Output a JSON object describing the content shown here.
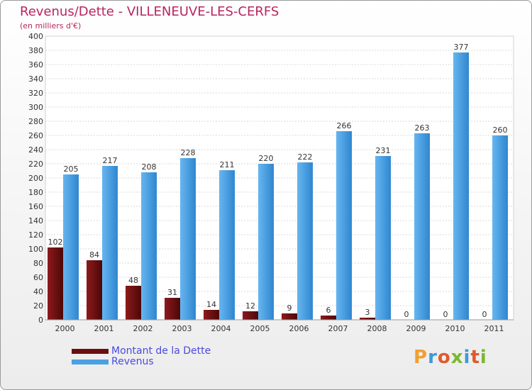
{
  "title": "Revenus/Dette - VILLENEUVE-LES-CERFS",
  "subtitle": "(en milliers d'€)",
  "legend": [
    {
      "label": "Montant de la Dette",
      "color": "#6b0d10"
    },
    {
      "label": "Revenus",
      "color": "#4aa0e2"
    }
  ],
  "logo_text": "Proxiti",
  "chart_data": {
    "type": "bar",
    "title": "Revenus/Dette - VILLENEUVE-LES-CERFS",
    "ylabel": "(en milliers d'€)",
    "xlabel": "",
    "ylim": [
      0,
      400
    ],
    "ytick_step": 20,
    "grid": true,
    "categories": [
      "2000",
      "2001",
      "2002",
      "2003",
      "2004",
      "2005",
      "2006",
      "2007",
      "2008",
      "2009",
      "2010",
      "2011"
    ],
    "series": [
      {
        "name": "Montant de la Dette",
        "color": "#6b0d10",
        "values": [
          102,
          84,
          48,
          31,
          14,
          12,
          9,
          6,
          3,
          0,
          0,
          0
        ]
      },
      {
        "name": "Revenus",
        "color": "#4aa0e2",
        "values": [
          205,
          217,
          208,
          228,
          211,
          220,
          222,
          266,
          231,
          263,
          377,
          260
        ]
      }
    ]
  }
}
